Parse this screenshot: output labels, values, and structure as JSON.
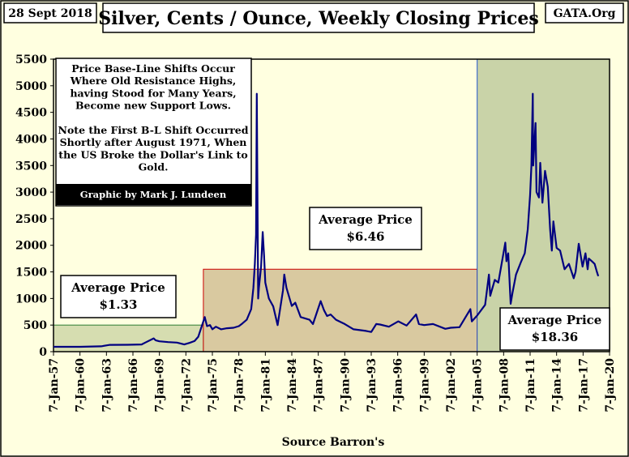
{
  "header": {
    "date": "28 Sept 2018",
    "title": "Silver, Cents / Ounce, Weekly Closing Prices",
    "brand": "GATA.Org"
  },
  "note": {
    "lines": [
      "Price Base-Line Shifts Occur",
      "Where Old Resistance Highs,",
      "having Stood for Many Years,",
      "Become new Support Lows.",
      "",
      "Note the First B-L Shift Occurred",
      "Shortly after August 1971, When",
      "the US Broke the Dollar's Link to",
      "Gold."
    ],
    "credit": "Graphic by Mark J. Lundeen"
  },
  "source": "Source Barron's",
  "colors": {
    "background": "#FFFFE0",
    "line": "#000080",
    "green_band": "#D6DDB0",
    "red_band": "#D9C9A0",
    "blue_band": "#C9D3A8"
  },
  "chart_data": {
    "type": "line",
    "title": "Silver, Cents / Ounce, Weekly Closing Prices",
    "xlabel": "Source Barron's",
    "ylabel": "",
    "x_range": [
      "1957-01-07",
      "2020-01-07"
    ],
    "ylim": [
      0,
      5500
    ],
    "y_ticks": [
      0,
      500,
      1000,
      1500,
      2000,
      2500,
      3000,
      3500,
      4000,
      4500,
      5000,
      5500
    ],
    "x_ticks": [
      "7-Jan-57",
      "7-Jan-60",
      "7-Jan-63",
      "7-Jan-66",
      "7-Jan-69",
      "7-Jan-72",
      "7-Jan-75",
      "7-Jan-78",
      "7-Jan-81",
      "7-Jan-84",
      "7-Jan-87",
      "7-Jan-90",
      "7-Jan-93",
      "7-Jan-96",
      "7-Jan-99",
      "7-Jan-02",
      "7-Jan-05",
      "7-Jan-08",
      "7-Jan-11",
      "7-Jan-14",
      "7-Jan-17",
      "7-Jan-20"
    ],
    "grid": false,
    "regions": [
      {
        "start": "1957-01-07",
        "end": "1973-12-31",
        "ceiling": 500,
        "label": [
          "Average Price",
          "$1.33"
        ]
      },
      {
        "start": "1973-12-31",
        "end": "2005-01-07",
        "ceiling": 1550,
        "label": [
          "Average Price",
          "$6.46"
        ]
      },
      {
        "start": "2005-01-07",
        "end": "2020-01-07",
        "ceiling": 5500,
        "label": [
          "Average Price",
          "$18.36"
        ]
      }
    ],
    "series": [
      {
        "points": [
          [
            "1957-01-07",
            91
          ],
          [
            "1960-01-07",
            91
          ],
          [
            "1962-06-01",
            100
          ],
          [
            "1963-06-01",
            128
          ],
          [
            "1965-06-01",
            129
          ],
          [
            "1967-01-01",
            135
          ],
          [
            "1967-06-01",
            170
          ],
          [
            "1968-05-15",
            250
          ],
          [
            "1968-08-01",
            215
          ],
          [
            "1969-01-01",
            195
          ],
          [
            "1970-01-01",
            180
          ],
          [
            "1971-01-01",
            170
          ],
          [
            "1971-11-01",
            135
          ],
          [
            "1972-06-01",
            165
          ],
          [
            "1973-01-01",
            200
          ],
          [
            "1973-06-01",
            280
          ],
          [
            "1974-02-25",
            650
          ],
          [
            "1974-06-01",
            480
          ],
          [
            "1974-10-01",
            500
          ],
          [
            "1975-01-07",
            420
          ],
          [
            "1975-06-01",
            470
          ],
          [
            "1976-01-01",
            420
          ],
          [
            "1976-09-01",
            440
          ],
          [
            "1977-06-01",
            450
          ],
          [
            "1978-01-07",
            480
          ],
          [
            "1978-06-01",
            530
          ],
          [
            "1978-12-01",
            600
          ],
          [
            "1979-06-01",
            800
          ],
          [
            "1979-09-01",
            1200
          ],
          [
            "1979-11-01",
            1650
          ],
          [
            "1979-12-20",
            2200
          ],
          [
            "1980-01-18",
            4850
          ],
          [
            "1980-02-15",
            3000
          ],
          [
            "1980-03-15",
            1000
          ],
          [
            "1980-04-15",
            1200
          ],
          [
            "1980-07-15",
            1600
          ],
          [
            "1980-09-20",
            2250
          ],
          [
            "1980-11-15",
            1800
          ],
          [
            "1981-01-07",
            1300
          ],
          [
            "1981-06-01",
            1000
          ],
          [
            "1981-12-01",
            850
          ],
          [
            "1982-06-01",
            500
          ],
          [
            "1983-01-07",
            1150
          ],
          [
            "1983-03-01",
            1450
          ],
          [
            "1983-06-01",
            1200
          ],
          [
            "1984-01-07",
            860
          ],
          [
            "1984-06-01",
            920
          ],
          [
            "1985-01-07",
            650
          ],
          [
            "1986-01-07",
            600
          ],
          [
            "1986-06-01",
            520
          ],
          [
            "1987-04-15",
            950
          ],
          [
            "1987-09-01",
            780
          ],
          [
            "1988-01-07",
            670
          ],
          [
            "1988-06-01",
            700
          ],
          [
            "1989-01-07",
            600
          ],
          [
            "1990-01-07",
            520
          ],
          [
            "1991-01-07",
            420
          ],
          [
            "1992-06-01",
            390
          ],
          [
            "1993-01-07",
            370
          ],
          [
            "1993-08-01",
            520
          ],
          [
            "1994-01-07",
            510
          ],
          [
            "1995-01-07",
            470
          ],
          [
            "1996-02-01",
            570
          ],
          [
            "1997-01-07",
            490
          ],
          [
            "1998-02-05",
            700
          ],
          [
            "1998-06-01",
            520
          ],
          [
            "1999-01-07",
            500
          ],
          [
            "2000-01-07",
            520
          ],
          [
            "2001-06-01",
            430
          ],
          [
            "2002-01-07",
            450
          ],
          [
            "2003-01-07",
            460
          ],
          [
            "2004-04-01",
            800
          ],
          [
            "2004-06-01",
            570
          ],
          [
            "2005-01-07",
            680
          ],
          [
            "2005-12-01",
            880
          ],
          [
            "2006-05-10",
            1450
          ],
          [
            "2006-07-01",
            1050
          ],
          [
            "2007-01-07",
            1350
          ],
          [
            "2007-06-01",
            1300
          ],
          [
            "2008-03-15",
            2050
          ],
          [
            "2008-05-01",
            1700
          ],
          [
            "2008-07-15",
            1850
          ],
          [
            "2008-10-25",
            900
          ],
          [
            "2009-01-07",
            1100
          ],
          [
            "2009-06-01",
            1450
          ],
          [
            "2010-01-07",
            1700
          ],
          [
            "2010-06-01",
            1850
          ],
          [
            "2010-10-01",
            2300
          ],
          [
            "2011-01-07",
            2950
          ],
          [
            "2011-03-01",
            3500
          ],
          [
            "2011-04-28",
            4850
          ],
          [
            "2011-05-15",
            3500
          ],
          [
            "2011-08-20",
            4300
          ],
          [
            "2011-09-30",
            3000
          ],
          [
            "2012-01-07",
            2900
          ],
          [
            "2012-03-01",
            3550
          ],
          [
            "2012-06-01",
            2800
          ],
          [
            "2012-09-15",
            3400
          ],
          [
            "2013-01-07",
            3100
          ],
          [
            "2013-04-15",
            2300
          ],
          [
            "2013-06-25",
            1900
          ],
          [
            "2013-08-25",
            2450
          ],
          [
            "2014-01-07",
            1950
          ],
          [
            "2014-06-01",
            1900
          ],
          [
            "2014-12-01",
            1550
          ],
          [
            "2015-06-01",
            1650
          ],
          [
            "2015-12-15",
            1380
          ],
          [
            "2016-03-01",
            1500
          ],
          [
            "2016-07-10",
            2030
          ],
          [
            "2016-12-15",
            1600
          ],
          [
            "2017-04-15",
            1850
          ],
          [
            "2017-07-15",
            1550
          ],
          [
            "2017-09-01",
            1750
          ],
          [
            "2018-01-07",
            1700
          ],
          [
            "2018-05-01",
            1650
          ],
          [
            "2018-08-01",
            1500
          ],
          [
            "2018-09-28",
            1420
          ]
        ]
      }
    ]
  }
}
